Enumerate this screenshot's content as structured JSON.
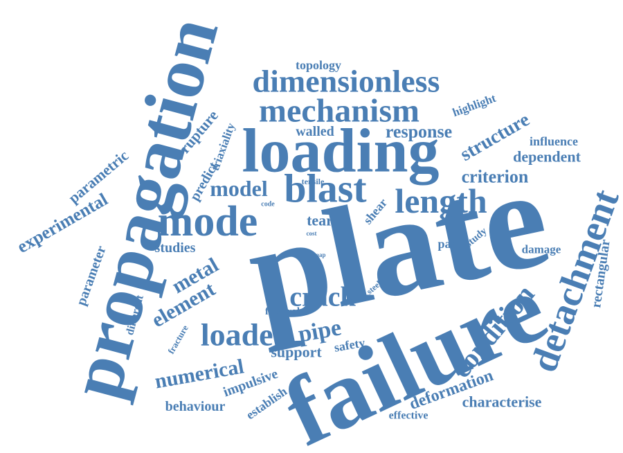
{
  "words": [
    "propagation",
    "plate",
    "failure",
    "loading",
    "mechanism",
    "dimensionless",
    "mode",
    "blast",
    "length",
    "model",
    "detachment",
    "condition",
    "crack",
    "loaded",
    "pipe",
    "element",
    "metal",
    "numerical",
    "support",
    "safety",
    "structure",
    "response",
    "criterion",
    "dependent",
    "influence",
    "highlight",
    "topology",
    "walled",
    "rupture",
    "triaxiality",
    "predict",
    "parametric",
    "experimental",
    "parameter",
    "different",
    "studies",
    "tear",
    "tensile",
    "code",
    "cost",
    "map",
    "shear",
    "steel",
    "flexural",
    "path",
    "study",
    "damage",
    "rectangular",
    "fracture",
    "impulsive",
    "establish",
    "behaviour",
    "deformation",
    "characterise",
    "effective"
  ]
}
